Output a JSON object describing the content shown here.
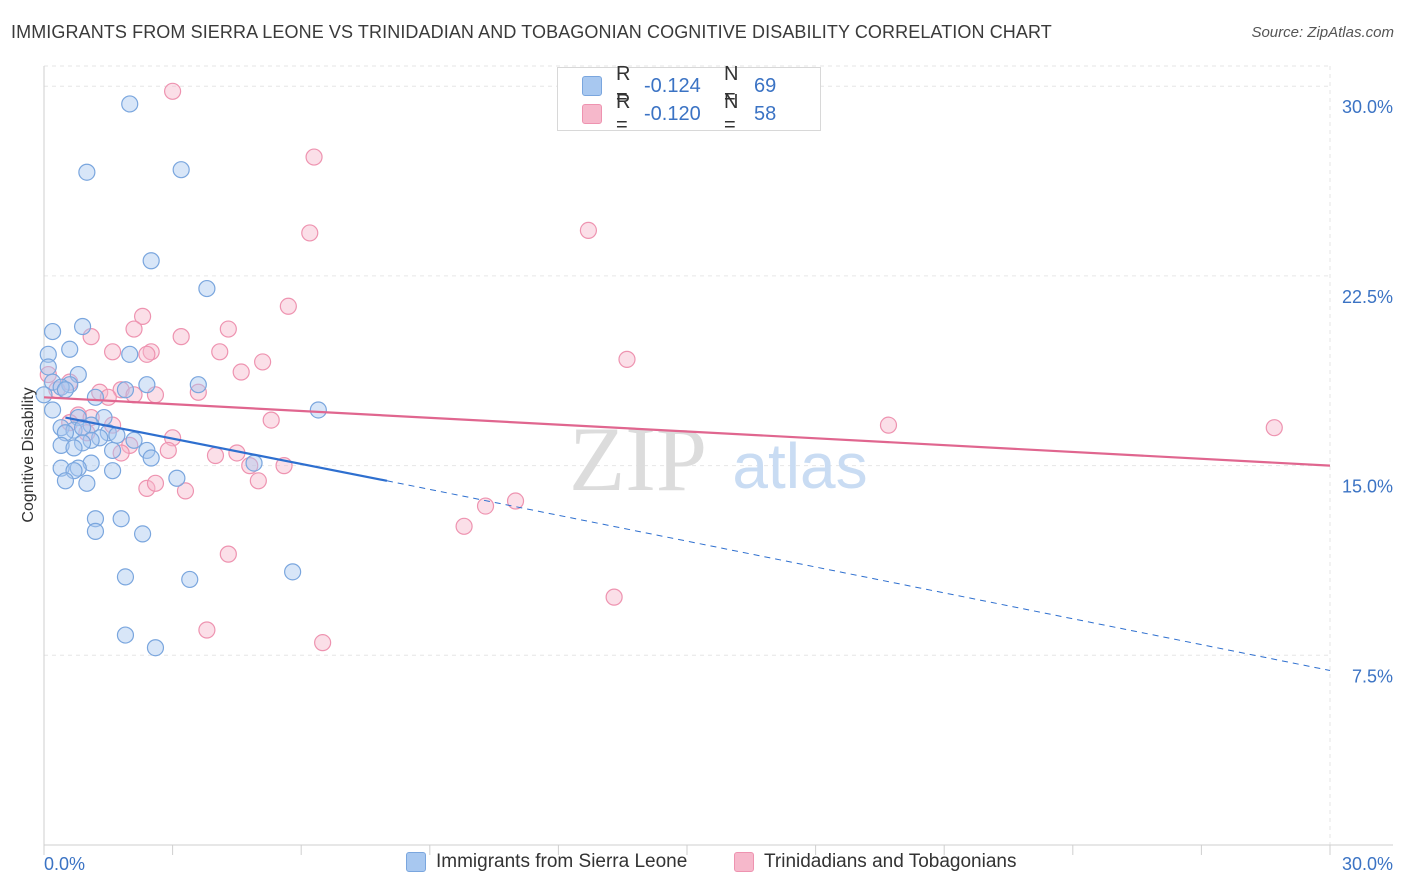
{
  "title": "IMMIGRANTS FROM SIERRA LEONE VS TRINIDADIAN AND TOBAGONIAN COGNITIVE DISABILITY CORRELATION CHART",
  "source": "Source: ZipAtlas.com",
  "watermark": {
    "zip": "ZIP",
    "atlas": "atlas"
  },
  "legend": {
    "r_label": "R =",
    "n_label": "N =",
    "series": [
      {
        "r": "-0.124",
        "n": "69"
      },
      {
        "r": "-0.120",
        "n": "58"
      }
    ]
  },
  "colors": {
    "blue_fill": "#a8c8f0",
    "blue_stroke": "#7aa6de",
    "blue_line": "#2e6fcf",
    "pink_fill": "#f6b8cb",
    "pink_stroke": "#ee93b0",
    "pink_line": "#e0668f",
    "tick_text": "#3b73c4",
    "grid": "#e6e6e6"
  },
  "chart_data": {
    "type": "scatter",
    "ylabel": "Cognitive Disability",
    "xlim": [
      0,
      30
    ],
    "ylim": [
      0,
      30.8
    ],
    "x_tick_labels": [
      "0.0%",
      "30.0%"
    ],
    "y_ticks": [
      7.5,
      15.0,
      22.5,
      30.0
    ],
    "y_tick_labels": [
      "7.5%",
      "15.0%",
      "22.5%",
      "30.0%"
    ],
    "grid": true,
    "series": [
      {
        "name": "Immigrants from Sierra Leone",
        "color": "blue",
        "trend": {
          "x0": 0.5,
          "y0": 16.9,
          "x1": 8.0,
          "y1": 14.4,
          "dash_to_x": 30.0,
          "dash_to_y": 6.9
        },
        "points": [
          [
            2.0,
            29.3
          ],
          [
            3.2,
            26.7
          ],
          [
            1.0,
            26.6
          ],
          [
            2.5,
            23.1
          ],
          [
            3.8,
            22.0
          ],
          [
            0.9,
            20.5
          ],
          [
            0.2,
            20.3
          ],
          [
            0.6,
            19.6
          ],
          [
            2.0,
            19.4
          ],
          [
            0.1,
            19.4
          ],
          [
            0.1,
            18.9
          ],
          [
            0.8,
            18.6
          ],
          [
            0.2,
            18.3
          ],
          [
            0.6,
            18.2
          ],
          [
            2.4,
            18.2
          ],
          [
            3.6,
            18.2
          ],
          [
            0.4,
            18.1
          ],
          [
            1.9,
            18.0
          ],
          [
            0.5,
            18.0
          ],
          [
            0.0,
            17.8
          ],
          [
            1.2,
            17.7
          ],
          [
            0.2,
            17.2
          ],
          [
            6.4,
            17.2
          ],
          [
            1.4,
            16.9
          ],
          [
            0.8,
            16.9
          ],
          [
            1.1,
            16.6
          ],
          [
            0.4,
            16.5
          ],
          [
            0.7,
            16.4
          ],
          [
            0.9,
            16.5
          ],
          [
            0.5,
            16.3
          ],
          [
            1.5,
            16.3
          ],
          [
            1.3,
            16.1
          ],
          [
            1.7,
            16.2
          ],
          [
            1.1,
            16.0
          ],
          [
            2.1,
            16.0
          ],
          [
            0.9,
            15.9
          ],
          [
            0.4,
            15.8
          ],
          [
            0.7,
            15.7
          ],
          [
            1.6,
            15.6
          ],
          [
            2.4,
            15.6
          ],
          [
            2.5,
            15.3
          ],
          [
            1.1,
            15.1
          ],
          [
            4.9,
            15.1
          ],
          [
            0.4,
            14.9
          ],
          [
            0.8,
            14.9
          ],
          [
            0.7,
            14.8
          ],
          [
            1.6,
            14.8
          ],
          [
            3.1,
            14.5
          ],
          [
            0.5,
            14.4
          ],
          [
            1.0,
            14.3
          ],
          [
            1.2,
            12.9
          ],
          [
            1.8,
            12.9
          ],
          [
            1.2,
            12.4
          ],
          [
            2.3,
            12.3
          ],
          [
            1.9,
            10.6
          ],
          [
            3.4,
            10.5
          ],
          [
            5.8,
            10.8
          ],
          [
            1.9,
            8.3
          ],
          [
            2.6,
            7.8
          ]
        ]
      },
      {
        "name": "Trinidadians and Tobagonians",
        "color": "pink",
        "trend": {
          "x0": 0.0,
          "y0": 17.7,
          "x1": 30.0,
          "y1": 15.0
        },
        "points": [
          [
            3.0,
            29.8
          ],
          [
            6.3,
            27.2
          ],
          [
            6.2,
            24.2
          ],
          [
            12.7,
            24.3
          ],
          [
            5.7,
            21.3
          ],
          [
            2.3,
            20.9
          ],
          [
            2.1,
            20.4
          ],
          [
            4.3,
            20.4
          ],
          [
            3.2,
            20.1
          ],
          [
            1.1,
            20.1
          ],
          [
            1.6,
            19.5
          ],
          [
            2.5,
            19.5
          ],
          [
            4.1,
            19.5
          ],
          [
            2.4,
            19.4
          ],
          [
            5.1,
            19.1
          ],
          [
            13.6,
            19.2
          ],
          [
            4.6,
            18.7
          ],
          [
            0.1,
            18.6
          ],
          [
            0.6,
            18.3
          ],
          [
            0.3,
            18.0
          ],
          [
            1.8,
            18.0
          ],
          [
            1.3,
            17.9
          ],
          [
            2.6,
            17.8
          ],
          [
            2.1,
            17.8
          ],
          [
            3.6,
            17.9
          ],
          [
            1.5,
            17.7
          ],
          [
            0.8,
            17.0
          ],
          [
            1.1,
            16.9
          ],
          [
            0.6,
            16.7
          ],
          [
            1.6,
            16.6
          ],
          [
            5.3,
            16.8
          ],
          [
            19.7,
            16.6
          ],
          [
            28.7,
            16.5
          ],
          [
            1.0,
            16.3
          ],
          [
            3.0,
            16.1
          ],
          [
            2.0,
            15.8
          ],
          [
            1.8,
            15.5
          ],
          [
            4.5,
            15.5
          ],
          [
            4.0,
            15.4
          ],
          [
            2.9,
            15.6
          ],
          [
            4.8,
            15.0
          ],
          [
            5.6,
            15.0
          ],
          [
            5.0,
            14.4
          ],
          [
            2.4,
            14.1
          ],
          [
            2.6,
            14.3
          ],
          [
            3.3,
            14.0
          ],
          [
            11.0,
            13.6
          ],
          [
            10.3,
            13.4
          ],
          [
            9.8,
            12.6
          ],
          [
            4.3,
            11.5
          ],
          [
            13.3,
            9.8
          ],
          [
            3.8,
            8.5
          ],
          [
            6.5,
            8.0
          ]
        ]
      }
    ]
  }
}
